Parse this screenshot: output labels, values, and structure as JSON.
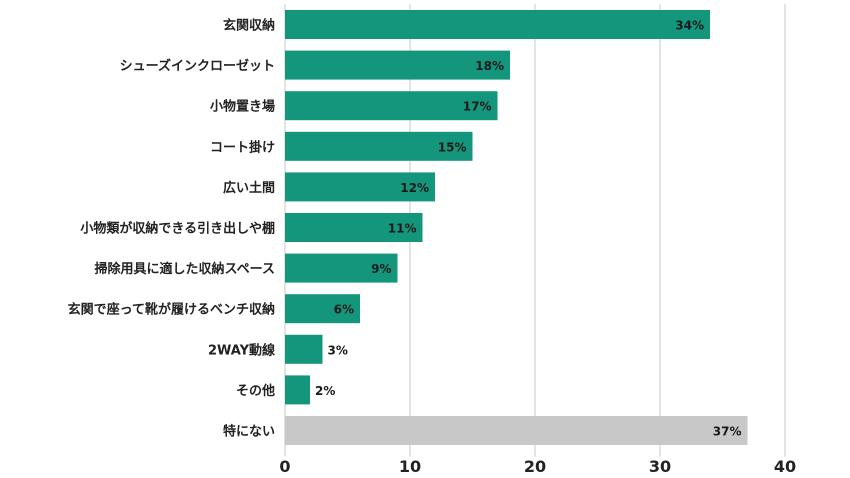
{
  "chart_data": {
    "type": "bar",
    "orientation": "horizontal",
    "categories": [
      "玄関収納",
      "シューズインクローゼット",
      "小物置き場",
      "コート掛け",
      "広い土間",
      "小物類が収納できる引き出しや棚",
      "掃除用具に適した収納スペース",
      "玄関で座って靴が履けるベンチ収納",
      "2WAY動線",
      "その他",
      "特にない"
    ],
    "values": [
      34,
      18,
      17,
      15,
      12,
      11,
      9,
      6,
      3,
      2,
      37
    ],
    "value_labels": [
      "34%",
      "18%",
      "17%",
      "15%",
      "12%",
      "11%",
      "9%",
      "6%",
      "3%",
      "2%",
      "37%"
    ],
    "bar_colors": [
      "#14967c",
      "#14967c",
      "#14967c",
      "#14967c",
      "#14967c",
      "#14967c",
      "#14967c",
      "#14967c",
      "#14967c",
      "#14967c",
      "#c8c8c8"
    ],
    "x_ticks": [
      0,
      10,
      20,
      30,
      40
    ],
    "xlim": [
      0,
      40
    ],
    "grid": true,
    "title": "",
    "xlabel": "",
    "ylabel": ""
  }
}
